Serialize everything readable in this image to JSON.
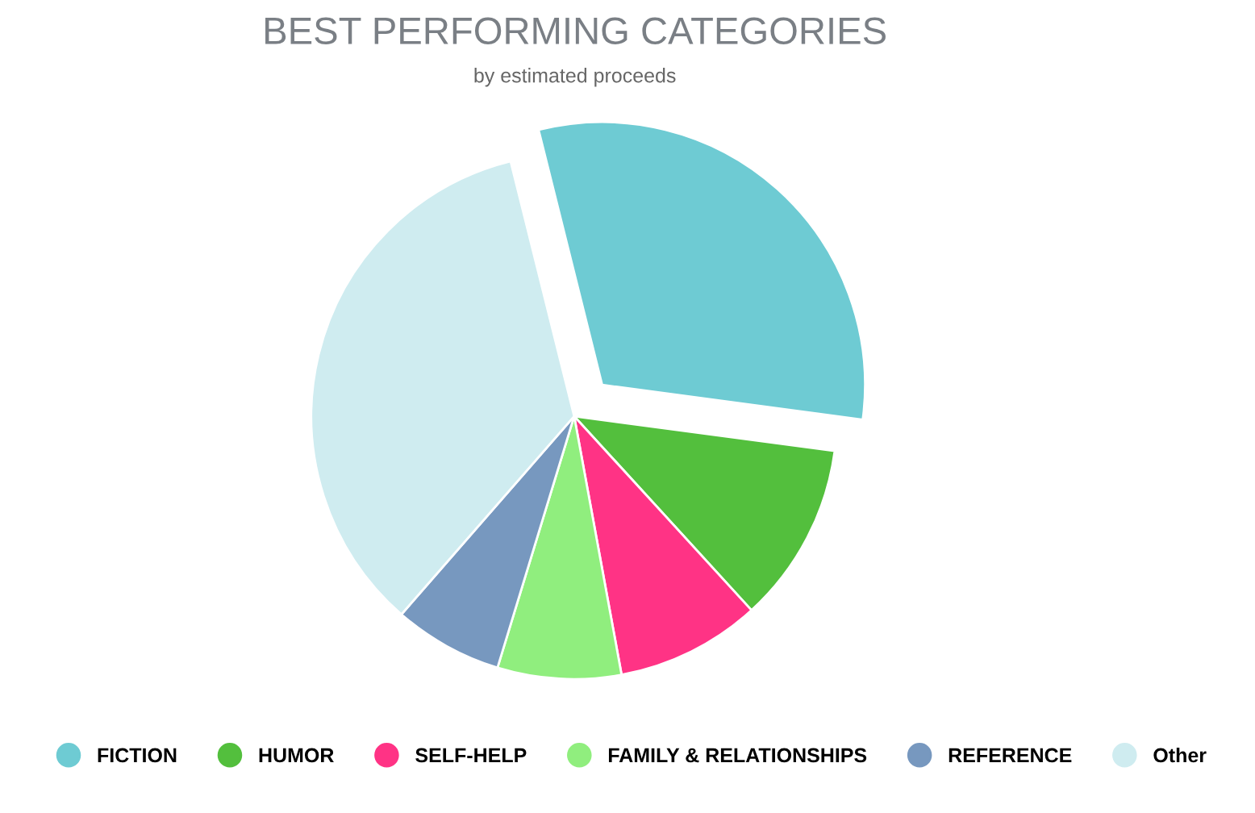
{
  "chart_data": {
    "type": "pie",
    "title": "BEST PERFORMING CATEGORIES",
    "subtitle": "by estimated proceeds",
    "categories": [
      "FICTION",
      "HUMOR",
      "SELF-HELP",
      "FAMILY & RELATIONSHIPS",
      "REFERENCE",
      "Other"
    ],
    "values": [
      31,
      11.1,
      8.9,
      7.6,
      6.7,
      34.7
    ],
    "colors": [
      "#6ecbd3",
      "#53bf3d",
      "#ff3385",
      "#90ee7e",
      "#7798bf",
      "#cfecf0"
    ],
    "legend": "bottom"
  }
}
